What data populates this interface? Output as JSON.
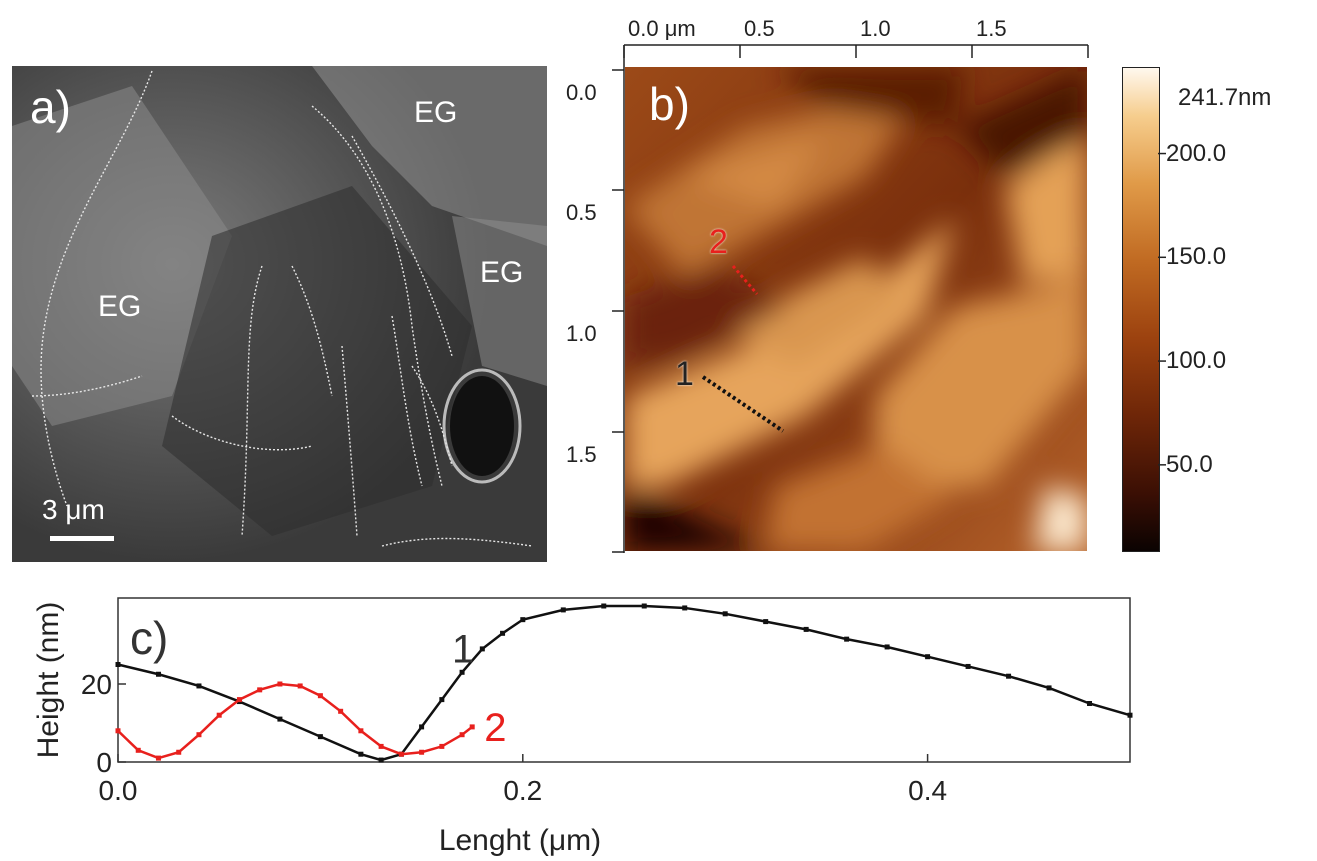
{
  "panel_a": {
    "label": "a)",
    "regions": [
      "EG",
      "EG",
      "EG"
    ],
    "scale_bar": "3 μm"
  },
  "panel_b": {
    "label": "b)",
    "x_ticks": [
      "0.0 μm",
      "0.5",
      "1.0",
      "1.5"
    ],
    "y_ticks": [
      "0.0",
      "0.5",
      "1.0",
      "1.5"
    ],
    "profile_labels": [
      "1",
      "2"
    ],
    "colorbar": {
      "max_label": "241.7nm",
      "ticks": [
        "200.0",
        "150.0",
        "100.0",
        "50.0"
      ],
      "tick_values": [
        200,
        150,
        100,
        50
      ],
      "max_value": 241.7,
      "min_value": 8
    }
  },
  "chart_data": {
    "type": "line",
    "panel_label": "c)",
    "xlabel": "Lenght (μm)",
    "ylabel": "Height (nm)",
    "xlim": [
      0,
      0.5
    ],
    "ylim": [
      0,
      40
    ],
    "x_ticks": [
      "0.0",
      "0.2",
      "0.4"
    ],
    "x_tick_values": [
      0,
      0.2,
      0.4
    ],
    "y_ticks": [
      "0",
      "20"
    ],
    "y_tick_values": [
      0,
      20
    ],
    "series": [
      {
        "name": "1",
        "color": "#111111",
        "x": [
          0,
          0.02,
          0.04,
          0.06,
          0.08,
          0.1,
          0.12,
          0.13,
          0.14,
          0.15,
          0.16,
          0.17,
          0.18,
          0.19,
          0.2,
          0.22,
          0.24,
          0.26,
          0.28,
          0.3,
          0.32,
          0.34,
          0.36,
          0.38,
          0.4,
          0.42,
          0.44,
          0.46,
          0.48,
          0.5
        ],
        "y": [
          25,
          22.5,
          19.5,
          15.5,
          11,
          6.5,
          2,
          0.5,
          2,
          9,
          16,
          23,
          29,
          33,
          36.5,
          39,
          40,
          40,
          39.5,
          38,
          36,
          34,
          31.5,
          29.5,
          27,
          24.5,
          22,
          19,
          15,
          12
        ]
      },
      {
        "name": "2",
        "color": "#e8201d",
        "x": [
          0,
          0.01,
          0.02,
          0.03,
          0.04,
          0.05,
          0.06,
          0.07,
          0.08,
          0.09,
          0.1,
          0.11,
          0.12,
          0.13,
          0.14,
          0.15,
          0.16,
          0.17,
          0.175
        ],
        "y": [
          8,
          3,
          1,
          2.5,
          7,
          12,
          16,
          18.5,
          20,
          19.5,
          17,
          13,
          8,
          4,
          2,
          2.5,
          4,
          7,
          9
        ]
      }
    ]
  }
}
